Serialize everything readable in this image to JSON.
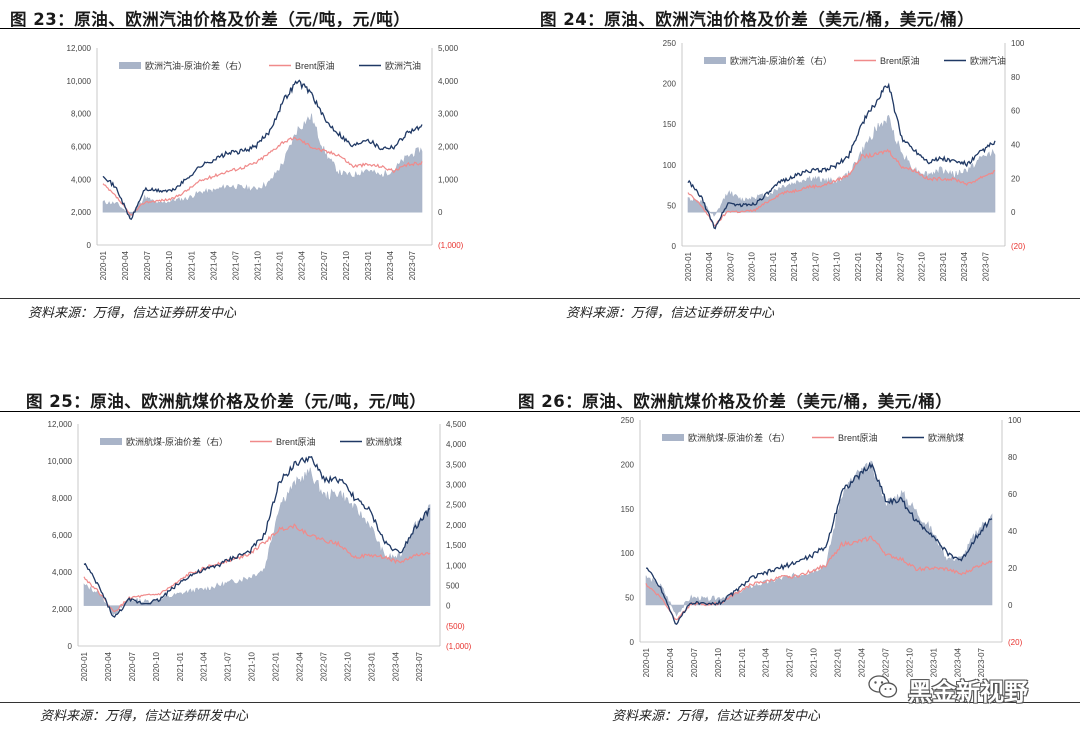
{
  "figures": [
    {
      "title": "图 23：原油、欧洲汽油价格及价差（元/吨，元/吨）",
      "source": "资料来源：万得，信达证券研发中心",
      "legend": [
        "欧洲汽油-原油价差（右）",
        "Brent原油",
        "欧洲汽油"
      ],
      "left_ticks": [
        "0",
        "2,000",
        "4,000",
        "6,000",
        "8,000",
        "10,000",
        "12,000"
      ],
      "right_ticks": [
        "(1,000)",
        "0",
        "1,000",
        "2,000",
        "3,000",
        "4,000",
        "5,000"
      ],
      "x_ticks": [
        "2020-01",
        "2020-04",
        "2020-07",
        "2020-10",
        "2021-01",
        "2021-04",
        "2021-07",
        "2021-10",
        "2022-01",
        "2022-04",
        "2022-07",
        "2022-10",
        "2023-01",
        "2023-04",
        "2023-07"
      ]
    },
    {
      "title": "图 24：原油、欧洲汽油价格及价差（美元/桶，美元/桶）",
      "source": "资料来源：万得，信达证券研发中心",
      "legend": [
        "欧洲汽油-原油价差（右）",
        "Brent原油",
        "欧洲汽油"
      ],
      "left_ticks": [
        "0",
        "50",
        "100",
        "150",
        "200",
        "250"
      ],
      "right_ticks": [
        "(20)",
        "0",
        "20",
        "40",
        "60",
        "80",
        "100"
      ],
      "x_ticks": [
        "2020-01",
        "2020-04",
        "2020-07",
        "2020-10",
        "2021-01",
        "2021-04",
        "2021-07",
        "2021-10",
        "2022-01",
        "2022-04",
        "2022-07",
        "2022-10",
        "2023-01",
        "2023-04",
        "2023-07"
      ]
    },
    {
      "title": "图 25：原油、欧洲航煤价格及价差（元/吨，元/吨）",
      "source": "资料来源：万得，信达证券研发中心",
      "legend": [
        "欧洲航煤-原油价差（右）",
        "Brent原油",
        "欧洲航煤"
      ],
      "left_ticks": [
        "0",
        "2,000",
        "4,000",
        "6,000",
        "8,000",
        "10,000",
        "12,000"
      ],
      "right_ticks": [
        "(1,000)",
        "(500)",
        "0",
        "500",
        "1,000",
        "1,500",
        "2,000",
        "2,500",
        "3,000",
        "3,500",
        "4,000",
        "4,500"
      ],
      "x_ticks": [
        "2020-01",
        "2020-04",
        "2020-07",
        "2020-10",
        "2021-01",
        "2021-04",
        "2021-07",
        "2021-10",
        "2022-01",
        "2022-04",
        "2022-07",
        "2022-10",
        "2023-01",
        "2023-04",
        "2023-07"
      ]
    },
    {
      "title": "图 26：原油、欧洲航煤价格及价差（美元/桶，美元/桶）",
      "source": "资料来源：万得，信达证券研发中心",
      "legend": [
        "欧洲航煤-原油价差（右）",
        "Brent原油",
        "欧洲航煤"
      ],
      "left_ticks": [
        "0",
        "50",
        "100",
        "150",
        "200",
        "250"
      ],
      "right_ticks": [
        "(20)",
        "0",
        "20",
        "40",
        "60",
        "80",
        "100"
      ],
      "x_ticks": [
        "2020-01",
        "2020-04",
        "2020-07",
        "2020-10",
        "2021-01",
        "2021-04",
        "2021-07",
        "2021-10",
        "2022-01",
        "2022-04",
        "2022-07",
        "2022-10",
        "2023-01",
        "2023-04",
        "2023-07"
      ]
    }
  ],
  "colors": {
    "spread_area": "#a9b4c8",
    "brent_line": "#f08a8a",
    "product_line": "#1f3864",
    "negative_tick": "#e8322e"
  },
  "watermark": {
    "icon": "wechat-icon",
    "text": "黑金新视野"
  },
  "chart_data": [
    {
      "type": "line",
      "title": "图 23：原油、欧洲汽油价格及价差（元/吨，元/吨）",
      "x": [
        "2020-01",
        "2020-03",
        "2020-05",
        "2020-07",
        "2020-09",
        "2020-11",
        "2021-01",
        "2021-03",
        "2021-05",
        "2021-07",
        "2021-09",
        "2021-11",
        "2022-01",
        "2022-03",
        "2022-05",
        "2022-06",
        "2022-08",
        "2022-10",
        "2022-12",
        "2023-02",
        "2023-04",
        "2023-06",
        "2023-08",
        "2023-09"
      ],
      "series": [
        {
          "name": "欧洲汽油-原油价差（右）",
          "axis": "right",
          "type": "area",
          "values": [
            300,
            250,
            -100,
            450,
            250,
            350,
            400,
            600,
            650,
            800,
            750,
            700,
            900,
            1500,
            2500,
            2900,
            1800,
            1200,
            1100,
            1300,
            1100,
            1300,
            1700,
            1900
          ]
        },
        {
          "name": "Brent原油",
          "axis": "left",
          "values": [
            3700,
            2900,
            1800,
            2600,
            2700,
            2800,
            3300,
            3900,
            4200,
            4500,
            4700,
            5000,
            5600,
            6300,
            6500,
            6000,
            5700,
            5500,
            4800,
            4900,
            4800,
            4500,
            4900,
            5000
          ]
        },
        {
          "name": "欧洲汽油",
          "axis": "left",
          "values": [
            4300,
            3400,
            1500,
            3400,
            3300,
            3300,
            4000,
            4800,
            5200,
            5600,
            5700,
            6000,
            6900,
            8800,
            10000,
            9300,
            7600,
            6800,
            6000,
            6500,
            5900,
            6000,
            6900,
            7200
          ]
        }
      ],
      "ylim_left": [
        0,
        12000
      ],
      "ylim_right": [
        -1000,
        5000
      ]
    },
    {
      "type": "line",
      "title": "图 24：原油、欧洲汽油价格及价差（美元/桶，美元/桶）",
      "x": [
        "2020-01",
        "2020-03",
        "2020-05",
        "2020-07",
        "2020-09",
        "2020-11",
        "2021-01",
        "2021-03",
        "2021-05",
        "2021-07",
        "2021-09",
        "2021-11",
        "2022-01",
        "2022-03",
        "2022-05",
        "2022-06",
        "2022-08",
        "2022-10",
        "2022-12",
        "2023-02",
        "2023-04",
        "2023-06",
        "2023-08",
        "2023-09"
      ],
      "series": [
        {
          "name": "欧洲汽油-原油价差（右）",
          "axis": "right",
          "type": "area",
          "values": [
            8,
            6,
            -3,
            12,
            7,
            9,
            10,
            15,
            17,
            20,
            19,
            18,
            22,
            35,
            48,
            55,
            35,
            25,
            22,
            25,
            22,
            25,
            32,
            36
          ]
        },
        {
          "name": "Brent原油",
          "axis": "left",
          "values": [
            65,
            50,
            25,
            43,
            42,
            44,
            55,
            65,
            68,
            73,
            74,
            80,
            87,
            110,
            112,
            118,
            98,
            93,
            82,
            83,
            82,
            76,
            85,
            92
          ]
        },
        {
          "name": "欧洲汽油",
          "axis": "left",
          "values": [
            80,
            60,
            22,
            53,
            50,
            52,
            65,
            80,
            86,
            93,
            93,
            98,
            110,
            150,
            175,
            200,
            133,
            118,
            104,
            108,
            104,
            101,
            117,
            128
          ]
        }
      ],
      "ylim_left": [
        0,
        250
      ],
      "ylim_right": [
        -20,
        100
      ]
    },
    {
      "type": "line",
      "title": "图 25：原油、欧洲航煤价格及价差（元/吨，元/吨）",
      "x": [
        "2020-01",
        "2020-03",
        "2020-05",
        "2020-07",
        "2020-09",
        "2020-11",
        "2021-01",
        "2021-03",
        "2021-05",
        "2021-07",
        "2021-09",
        "2021-11",
        "2022-01",
        "2022-03",
        "2022-05",
        "2022-06",
        "2022-08",
        "2022-10",
        "2022-12",
        "2023-02",
        "2023-04",
        "2023-06",
        "2023-08",
        "2023-09"
      ],
      "series": [
        {
          "name": "欧洲航煤-原油价差（右）",
          "axis": "right",
          "type": "area",
          "values": [
            500,
            300,
            -200,
            150,
            100,
            150,
            250,
            350,
            400,
            500,
            600,
            700,
            900,
            2500,
            3000,
            3300,
            2700,
            2800,
            2400,
            2000,
            1200,
            1200,
            2000,
            2400
          ]
        },
        {
          "name": "Brent原油",
          "axis": "left",
          "values": [
            3700,
            2900,
            1800,
            2600,
            2700,
            2800,
            3300,
            3900,
            4200,
            4500,
            4700,
            5000,
            5600,
            6300,
            6500,
            6000,
            5700,
            5500,
            4800,
            4900,
            4800,
            4500,
            4900,
            5000
          ]
        },
        {
          "name": "欧洲航煤",
          "axis": "left",
          "values": [
            4500,
            3200,
            1500,
            2500,
            2300,
            2500,
            3200,
            3800,
            4100,
            4400,
            4800,
            5100,
            6000,
            8900,
            9800,
            10200,
            9000,
            9000,
            8000,
            7300,
            5600,
            5000,
            6400,
            7400
          ]
        }
      ],
      "ylim_left": [
        0,
        12000
      ],
      "ylim_right": [
        -1000,
        4500
      ]
    },
    {
      "type": "line",
      "title": "图 26：原油、欧洲航煤价格及价差（美元/桶，美元/桶）",
      "x": [
        "2020-01",
        "2020-03",
        "2020-05",
        "2020-07",
        "2020-09",
        "2020-11",
        "2021-01",
        "2021-03",
        "2021-05",
        "2021-07",
        "2021-09",
        "2021-11",
        "2022-01",
        "2022-03",
        "2022-05",
        "2022-06",
        "2022-08",
        "2022-10",
        "2022-12",
        "2023-02",
        "2023-04",
        "2023-06",
        "2023-08",
        "2023-09"
      ],
      "series": [
        {
          "name": "欧洲航煤-原油价差（右）",
          "axis": "right",
          "type": "area",
          "values": [
            15,
            10,
            -5,
            4,
            3,
            4,
            6,
            10,
            12,
            14,
            16,
            18,
            22,
            60,
            70,
            75,
            55,
            60,
            50,
            40,
            25,
            25,
            40,
            48
          ]
        },
        {
          "name": "Brent原油",
          "axis": "left",
          "values": [
            65,
            50,
            25,
            43,
            42,
            44,
            55,
            65,
            68,
            73,
            74,
            80,
            87,
            110,
            112,
            118,
            98,
            93,
            82,
            83,
            82,
            76,
            85,
            92
          ]
        },
        {
          "name": "欧洲航煤",
          "axis": "left",
          "values": [
            85,
            60,
            20,
            45,
            42,
            45,
            58,
            72,
            78,
            84,
            90,
            97,
            108,
            170,
            185,
            200,
            158,
            160,
            135,
            122,
            100,
            92,
            120,
            140
          ]
        }
      ],
      "ylim_left": [
        0,
        250
      ],
      "ylim_right": [
        -20,
        100
      ]
    }
  ]
}
